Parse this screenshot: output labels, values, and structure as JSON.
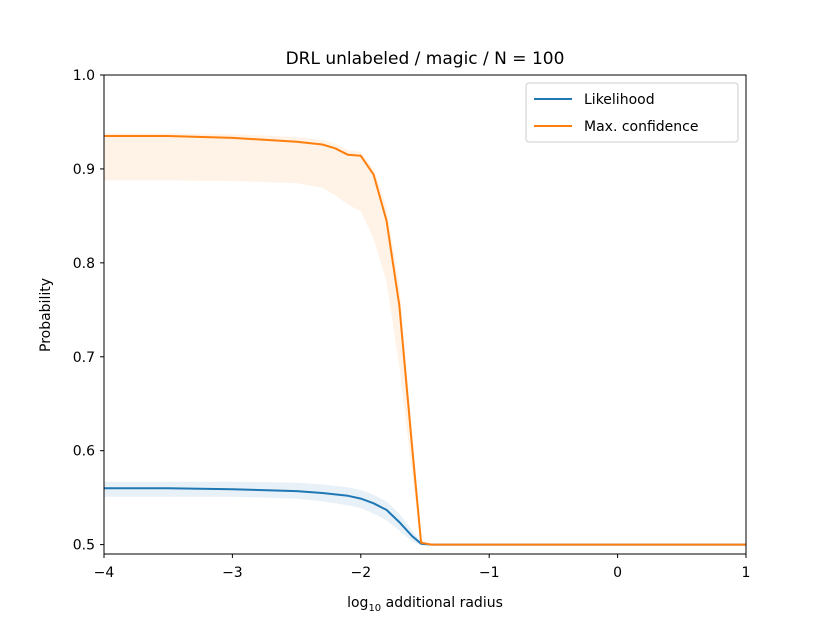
{
  "chart_data": {
    "type": "line",
    "title": "DRL unlabeled / magic / N = 100",
    "xlabel_main": "log",
    "xlabel_sub": "10",
    "xlabel_rest": " additional radius",
    "ylabel": "Probability",
    "xlim": [
      -4,
      1
    ],
    "ylim": [
      0.49,
      1.0
    ],
    "xticks": [
      -4,
      -3,
      -2,
      -1,
      0,
      1
    ],
    "xtick_labels": [
      "−4",
      "−3",
      "−2",
      "−1",
      "0",
      "1"
    ],
    "yticks": [
      0.5,
      0.6,
      0.7,
      0.8,
      0.9,
      1.0
    ],
    "ytick_labels": [
      "0.5",
      "0.6",
      "0.7",
      "0.8",
      "0.9",
      "1.0"
    ],
    "grid": false,
    "legend_position": "top-right",
    "series": [
      {
        "name": "Likelihood",
        "color": "#1f77b4",
        "x": [
          -4,
          -3.5,
          -3,
          -2.5,
          -2.3,
          -2.1,
          -2.0,
          -1.9,
          -1.8,
          -1.7,
          -1.6,
          -1.53,
          -1.45,
          -1.3,
          -1,
          0,
          1
        ],
        "y": [
          0.56,
          0.56,
          0.559,
          0.557,
          0.555,
          0.552,
          0.549,
          0.544,
          0.537,
          0.524,
          0.509,
          0.501,
          0.5,
          0.5,
          0.5,
          0.5,
          0.5
        ],
        "band_lower": [
          0.551,
          0.551,
          0.551,
          0.549,
          0.546,
          0.542,
          0.539,
          0.533,
          0.526,
          0.515,
          0.503,
          0.5,
          0.5,
          0.5,
          0.5,
          0.5,
          0.5
        ],
        "band_upper": [
          0.567,
          0.567,
          0.567,
          0.566,
          0.564,
          0.561,
          0.558,
          0.553,
          0.546,
          0.533,
          0.515,
          0.503,
          0.5,
          0.5,
          0.5,
          0.5,
          0.5
        ]
      },
      {
        "name": "Max. confidence",
        "color": "#ff7f0e",
        "x": [
          -4,
          -3.5,
          -3,
          -2.5,
          -2.3,
          -2.2,
          -2.1,
          -2.0,
          -1.9,
          -1.8,
          -1.7,
          -1.6,
          -1.53,
          -1.45,
          -1.3,
          -1,
          0,
          1
        ],
        "y": [
          0.935,
          0.935,
          0.933,
          0.929,
          0.926,
          0.922,
          0.915,
          0.914,
          0.894,
          0.845,
          0.755,
          0.603,
          0.502,
          0.5,
          0.5,
          0.5,
          0.5,
          0.5
        ],
        "band_lower": [
          0.888,
          0.888,
          0.887,
          0.885,
          0.88,
          0.872,
          0.862,
          0.855,
          0.826,
          0.78,
          0.69,
          0.575,
          0.5,
          0.5,
          0.5,
          0.5,
          0.5,
          0.5
        ],
        "band_upper": [
          0.938,
          0.938,
          0.937,
          0.934,
          0.931,
          0.927,
          0.92,
          0.918,
          0.9,
          0.86,
          0.775,
          0.62,
          0.505,
          0.5,
          0.5,
          0.5,
          0.5,
          0.5
        ]
      }
    ]
  }
}
